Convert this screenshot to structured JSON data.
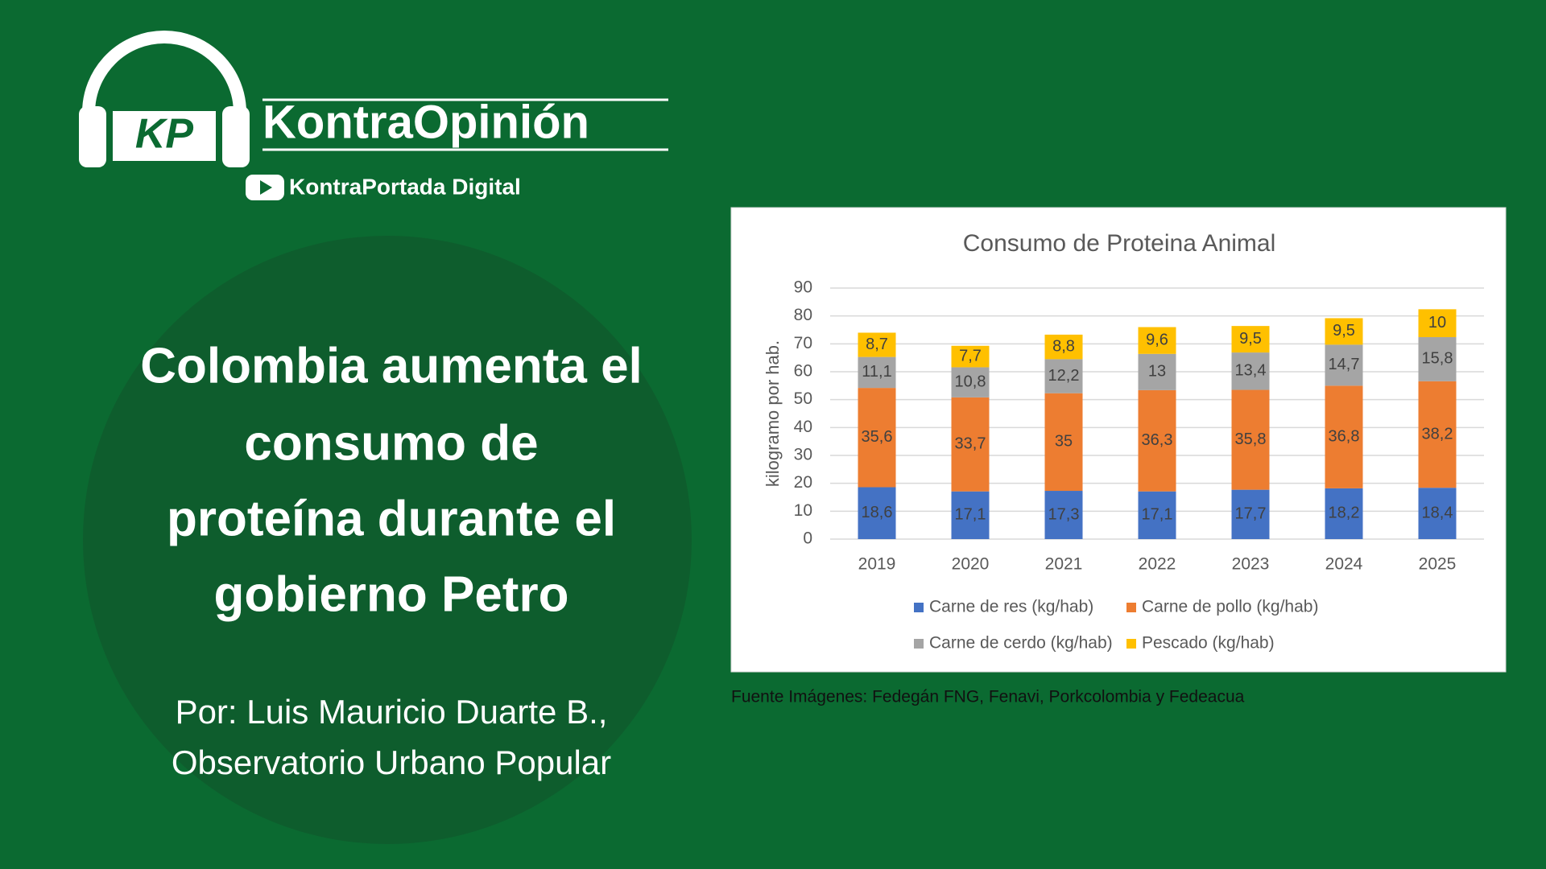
{
  "header": {
    "logo_text": "KP",
    "brand": "KontraOpinión",
    "channel": "KontraPortada Digital"
  },
  "headline": [
    "Colombia aumenta el",
    "consumo de",
    "proteína durante el",
    "gobierno Petro"
  ],
  "byline": [
    "Por: Luis Mauricio Duarte B.,",
    "Observatorio Urbano Popular"
  ],
  "source": "Fuente Imágenes: Fedegán FNG, Fenavi, Porkcolombia y Fedeacua",
  "chart_data": {
    "type": "bar",
    "stacked": true,
    "title": "Consumo de Proteina Animal",
    "y_label": "kilogramo por hab.",
    "categories": [
      "2019",
      "2020",
      "2021",
      "2022",
      "2023",
      "2024",
      "2025"
    ],
    "series": [
      {
        "name": "Carne de res (kg/hab)",
        "color": "#4472c4",
        "values": [
          18.6,
          17.1,
          17.3,
          17.1,
          17.7,
          18.2,
          18.4
        ],
        "value_labels": [
          "18,6",
          "17,1",
          "17,3",
          "17,1",
          "17,7",
          "18,2",
          "18,4"
        ]
      },
      {
        "name": "Carne de pollo (kg/hab)",
        "color": "#ed7d31",
        "values": [
          35.6,
          33.7,
          35,
          36.3,
          35.8,
          36.8,
          38.2
        ],
        "value_labels": [
          "35,6",
          "33,7",
          "35",
          "36,3",
          "35,8",
          "36,8",
          "38,2"
        ]
      },
      {
        "name": "Carne de cerdo (kg/hab)",
        "color": "#a5a5a5",
        "values": [
          11.1,
          10.8,
          12.2,
          13,
          13.4,
          14.7,
          15.8
        ],
        "value_labels": [
          "11,1",
          "10,8",
          "12,2",
          "13",
          "13,4",
          "14,7",
          "15,8"
        ]
      },
      {
        "name": "Pescado (kg/hab)",
        "color": "#ffc000",
        "values": [
          8.7,
          7.7,
          8.8,
          9.6,
          9.5,
          9.5,
          10
        ],
        "value_labels": [
          "8,7",
          "7,7",
          "8,8",
          "9,6",
          "9,5",
          "9,5",
          "10"
        ]
      }
    ],
    "ylim": [
      0,
      90
    ],
    "yticks": [
      0,
      10,
      20,
      30,
      40,
      50,
      60,
      70,
      80,
      90
    ],
    "grid": true,
    "legend": "bottom"
  }
}
